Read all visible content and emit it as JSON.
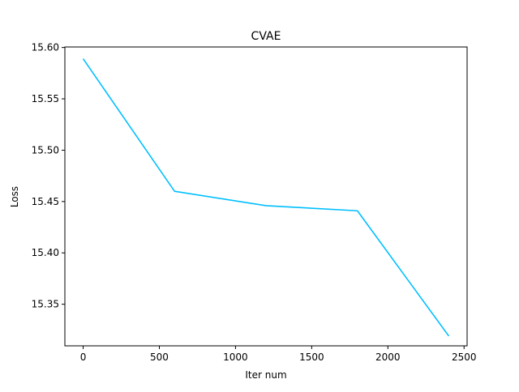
{
  "chart_data": {
    "type": "line",
    "title": "CVAE",
    "xlabel": "Iter num",
    "ylabel": "Loss",
    "xlim": [
      -120,
      2520
    ],
    "ylim": [
      15.3095,
      15.6005
    ],
    "xticks": [
      0,
      500,
      1000,
      1500,
      2000,
      2500
    ],
    "xtick_labels": [
      "0",
      "500",
      "1000",
      "1500",
      "2000",
      "2500"
    ],
    "yticks": [
      15.35,
      15.4,
      15.45,
      15.5,
      15.55,
      15.6
    ],
    "ytick_labels": [
      "15.35",
      "15.40",
      "15.45",
      "15.50",
      "15.55",
      "15.60"
    ],
    "grid": false,
    "series": [
      {
        "x": [
          0,
          600,
          1200,
          1800,
          2400
        ],
        "values": [
          15.589,
          15.46,
          15.446,
          15.441,
          15.319
        ],
        "color": "#00bfff"
      }
    ]
  }
}
